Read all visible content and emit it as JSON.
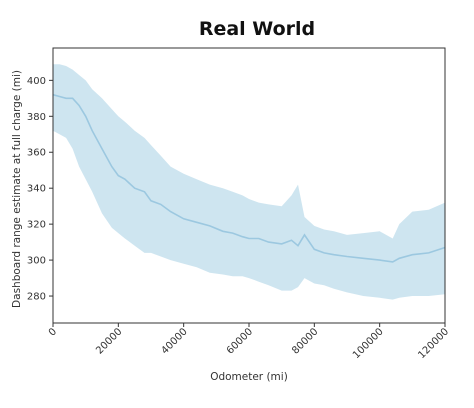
{
  "chart_data": {
    "type": "line",
    "title": "Real World",
    "xlabel": "Odometer (mi)",
    "ylabel": "Dashboard range estimate at full charge (mi)",
    "xlim": [
      0,
      120000
    ],
    "ylim": [
      265,
      418
    ],
    "grid": false,
    "legend": "none",
    "colors": {
      "line": "#9cc8e0",
      "band": "#a6cfe4",
      "axis": "#333333"
    },
    "x_ticks": [
      0,
      20000,
      40000,
      60000,
      80000,
      100000,
      120000
    ],
    "x_tick_labels": [
      "0",
      "20000",
      "40000",
      "60000",
      "80000",
      "100000",
      "120000"
    ],
    "y_ticks": [
      280,
      300,
      320,
      340,
      360,
      380,
      400
    ],
    "y_tick_labels": [
      "280",
      "300",
      "320",
      "340",
      "360",
      "380",
      "400"
    ],
    "series": [
      {
        "x": [
          0,
          2000,
          4000,
          6000,
          8000,
          10000,
          12000,
          15000,
          18000,
          20000,
          22000,
          25000,
          28000,
          30000,
          33000,
          36000,
          40000,
          44000,
          48000,
          52000,
          55000,
          58000,
          60000,
          63000,
          66000,
          70000,
          73000,
          75000,
          77000,
          80000,
          83000,
          86000,
          90000,
          95000,
          100000,
          104000,
          106000,
          110000,
          115000,
          120000
        ],
        "y": [
          392,
          391,
          390,
          390,
          386,
          380,
          372,
          362,
          352,
          347,
          345,
          340,
          338,
          333,
          331,
          327,
          323,
          321,
          319,
          316,
          315,
          313,
          312,
          312,
          310,
          309,
          311,
          308,
          314,
          306,
          304,
          303,
          302,
          301,
          300,
          299,
          301,
          303,
          304,
          307
        ],
        "lower": [
          372,
          370,
          368,
          362,
          352,
          345,
          338,
          326,
          318,
          315,
          312,
          308,
          304,
          304,
          302,
          300,
          298,
          296,
          293,
          292,
          291,
          291,
          290,
          288,
          286,
          283,
          283,
          285,
          290,
          287,
          286,
          284,
          282,
          280,
          279,
          278,
          279,
          280,
          280,
          281
        ],
        "upper": [
          409,
          409,
          408,
          406,
          403,
          400,
          395,
          390,
          384,
          380,
          377,
          372,
          368,
          364,
          358,
          352,
          348,
          345,
          342,
          340,
          338,
          336,
          334,
          332,
          331,
          330,
          336,
          342,
          324,
          319,
          317,
          316,
          314,
          315,
          316,
          312,
          320,
          327,
          328,
          332
        ]
      }
    ]
  }
}
